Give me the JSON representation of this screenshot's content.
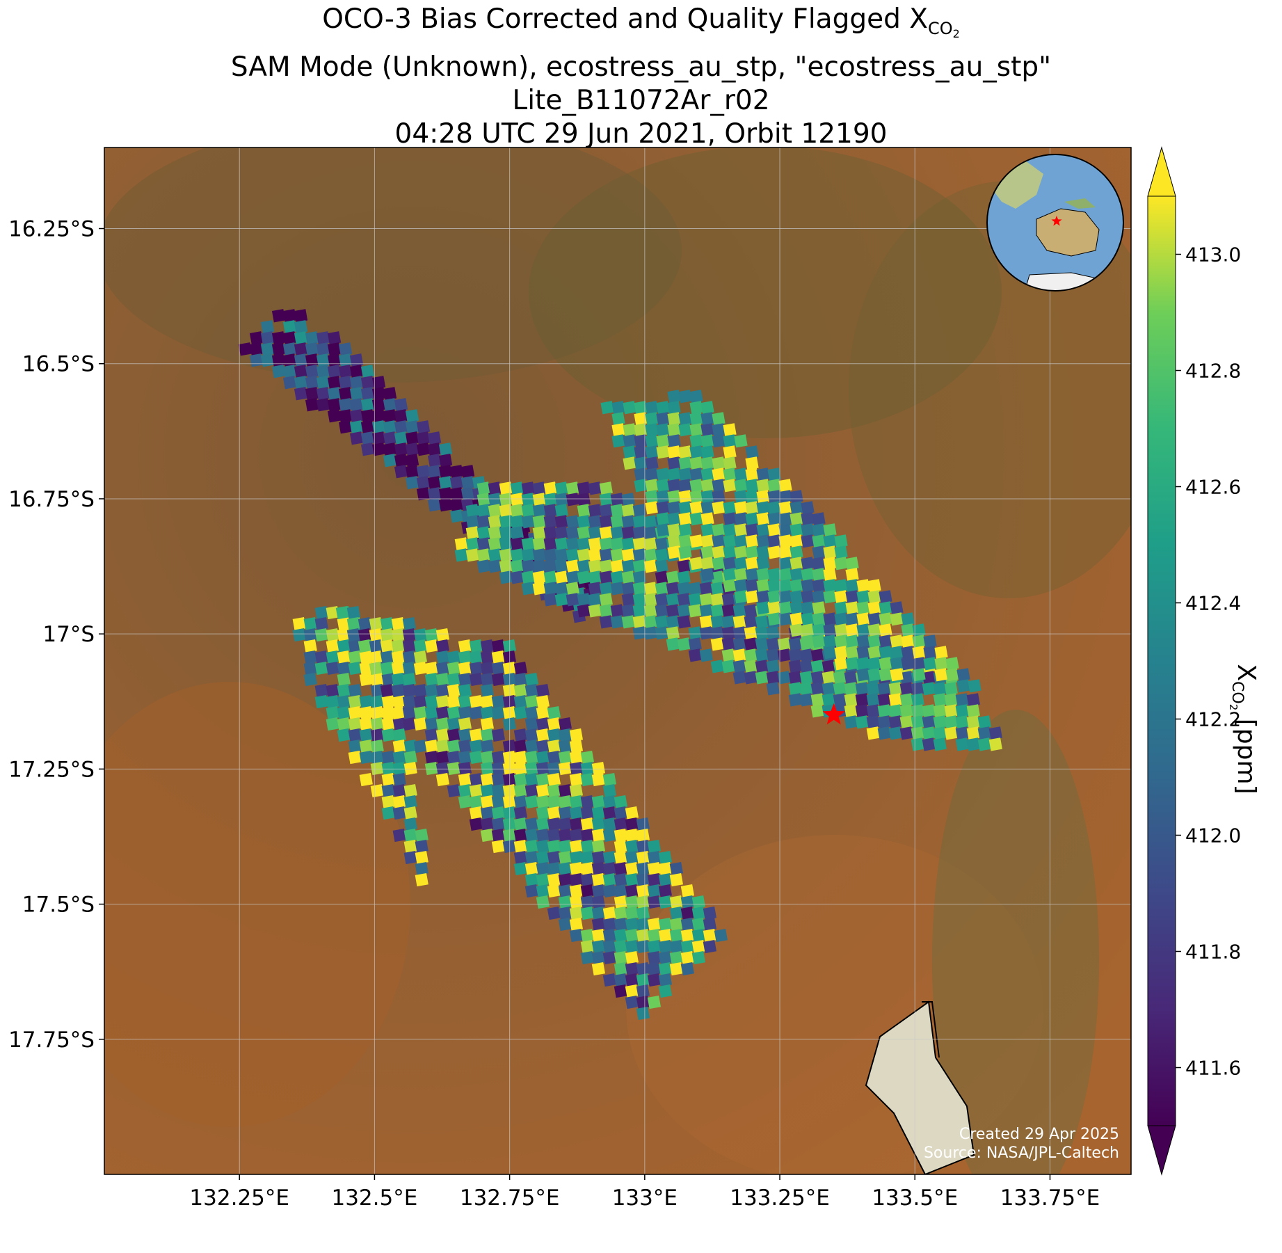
{
  "title": {
    "line1_prefix": "OCO-3 Bias Corrected and Quality Flagged X",
    "line1_sub": "CO",
    "line1_subsub": "2",
    "line2": "SAM Mode (Unknown), ecostress_au_stp, \"ecostress_au_stp\"",
    "line3": "Lite_B11072Ar_r02",
    "line4": "04:28 UTC 29 Jun 2021, Orbit 12190"
  },
  "chart_data": {
    "type": "heatmap",
    "x_ticks": [
      132.25,
      132.5,
      132.75,
      133.0,
      133.25,
      133.5,
      133.75
    ],
    "x_tick_labels": [
      "132.25°E",
      "132.5°E",
      "132.75°E",
      "133°E",
      "133.25°E",
      "133.5°E",
      "133.75°E"
    ],
    "y_ticks": [
      -16.25,
      -16.5,
      -16.75,
      -17.0,
      -17.25,
      -17.5,
      -17.75
    ],
    "y_tick_labels": [
      "16.25°S",
      "16.5°S",
      "16.75°S",
      "17°S",
      "17.25°S",
      "17.5°S",
      "17.75°S"
    ],
    "xlim": [
      132.0,
      133.9
    ],
    "ylim": [
      -18.0,
      -16.1
    ],
    "grid": true,
    "colorbar": {
      "label_prefix": "X",
      "label_sub": "CO",
      "label_subsub": "2",
      "label_suffix": " [ppm]",
      "range": [
        411.5,
        413.1
      ],
      "ticks": [
        411.6,
        411.8,
        412.0,
        412.2,
        412.4,
        412.6,
        412.8,
        413.0
      ],
      "tick_labels": [
        "411.6",
        "411.8",
        "412.0",
        "412.2",
        "412.4",
        "412.6",
        "412.8",
        "413.0"
      ],
      "colormap": "viridis",
      "extend": "both"
    },
    "target": {
      "lon": 133.35,
      "lat": -17.15,
      "marker": "red-star"
    },
    "swaths": [
      {
        "name": "",
        "corners": [
          [
            132.25,
            -16.47
          ],
          [
            132.35,
            -16.38
          ],
          [
            132.92,
            -16.92
          ],
          [
            132.88,
            -16.98
          ]
        ],
        "mean": 411.8,
        "spread": 0.4
      },
      {
        "name": "",
        "corners": [
          [
            132.7,
            -16.72
          ],
          [
            132.92,
            -16.72
          ],
          [
            133.3,
            -16.95
          ],
          [
            133.58,
            -17.08
          ],
          [
            133.68,
            -17.22
          ],
          [
            133.45,
            -17.2
          ],
          [
            133.1,
            -17.05
          ],
          [
            132.85,
            -16.95
          ],
          [
            132.65,
            -16.85
          ]
        ],
        "mean": 412.4,
        "spread": 0.5
      },
      {
        "name": "",
        "corners": [
          [
            132.92,
            -16.58
          ],
          [
            133.1,
            -16.55
          ],
          [
            133.45,
            -16.92
          ],
          [
            133.62,
            -17.1
          ],
          [
            133.4,
            -17.08
          ],
          [
            133.05,
            -16.85
          ]
        ],
        "mean": 412.6,
        "spread": 0.45
      },
      {
        "name": "",
        "corners": [
          [
            132.35,
            -16.97
          ],
          [
            132.45,
            -16.95
          ],
          [
            132.55,
            -17.05
          ],
          [
            132.6,
            -17.48
          ],
          [
            132.5,
            -17.3
          ],
          [
            132.38,
            -17.1
          ]
        ],
        "mean": 412.6,
        "spread": 0.55
      },
      {
        "name": "",
        "corners": [
          [
            132.43,
            -16.95
          ],
          [
            132.75,
            -17.02
          ],
          [
            133.0,
            -17.35
          ],
          [
            133.15,
            -17.55
          ],
          [
            133.05,
            -17.65
          ],
          [
            133.0,
            -17.72
          ],
          [
            132.85,
            -17.55
          ],
          [
            132.6,
            -17.25
          ]
        ],
        "mean": 412.5,
        "spread": 0.6
      }
    ]
  },
  "inset": {
    "name": "globe-inset",
    "marker": "red-star"
  },
  "credits": {
    "created": "Created 29 Apr 2025",
    "source": "Source: NASA/JPL-Caltech"
  },
  "colors": {
    "marker": "#ff0000",
    "background_land": "#8a5a2c",
    "grid": "#c8c8c8"
  }
}
